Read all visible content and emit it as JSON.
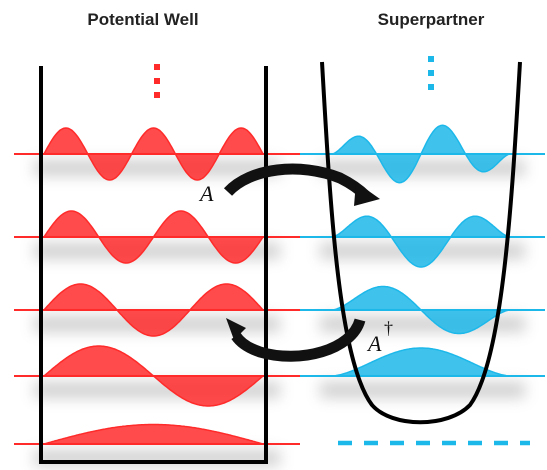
{
  "titles": {
    "left": "Potential Well",
    "right": "Superpartner"
  },
  "operators": {
    "lowering": "A",
    "raising": "A",
    "dagger": "†"
  },
  "colors": {
    "left_wave": "#ff2b2b",
    "right_wave": "#1db8ea",
    "potential": "#000000",
    "arrow": "#111111"
  },
  "left_states": [
    {
      "level": "n=5",
      "nodes": 4
    },
    {
      "level": "n=4",
      "nodes": 3
    },
    {
      "level": "n=3",
      "nodes": 2
    },
    {
      "level": "n=2",
      "nodes": 1
    },
    {
      "level": "n=1",
      "nodes": 0
    }
  ],
  "right_states": [
    {
      "level": "n=4",
      "nodes": 3
    },
    {
      "level": "n=3",
      "nodes": 2
    },
    {
      "level": "n=2",
      "nodes": 1
    },
    {
      "level": "n=1",
      "nodes": 0
    }
  ],
  "icons": {
    "left_continuation": "vertical-dots-icon",
    "right_continuation": "vertical-dots-icon",
    "missing_ground_state": "dashed-line-icon"
  }
}
